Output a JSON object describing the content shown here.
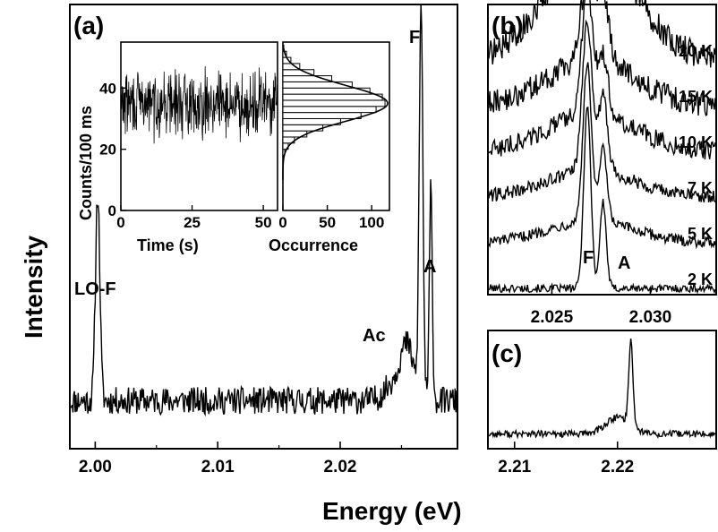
{
  "axes": {
    "xlabel": "Energy (eV)",
    "ylabel": "Intensity"
  },
  "chart_data": [
    {
      "id": "a",
      "type": "line",
      "panel_label": "(a)",
      "xlim": [
        1.998,
        2.0295
      ],
      "x_ticks": [
        "2.00",
        "2.01",
        "2.02"
      ],
      "x_tick_values": [
        2.0,
        2.01,
        2.02
      ],
      "ylim": [
        0,
        1
      ],
      "baseline": 0.12,
      "noise": 0.035,
      "peaks": [
        {
          "label": "LO-F",
          "x": 2.0002,
          "height": 0.53,
          "width": 0.00018
        },
        {
          "label": "Ac",
          "x": 2.0255,
          "height": 0.1,
          "width": 0.0005
        },
        {
          "label": "F",
          "x": 2.0266,
          "height": 1.0,
          "width": 0.00015
        },
        {
          "label": "A",
          "x": 2.0274,
          "height": 0.54,
          "width": 0.00012
        }
      ],
      "annotations": [
        "LO-F",
        "Ac",
        "F",
        "A"
      ]
    },
    {
      "id": "a-inset-trace",
      "type": "line",
      "xlabel": "Time (s)",
      "ylabel": "Counts/100 ms",
      "xlim": [
        0,
        55
      ],
      "ylim": [
        0,
        55
      ],
      "x_ticks": [
        "0",
        "25",
        "50"
      ],
      "x_tick_values": [
        0,
        25,
        50
      ],
      "y_ticks": [
        "0",
        "20",
        "40"
      ],
      "y_tick_values": [
        0,
        20,
        40
      ],
      "mean": 35,
      "spread": 6
    },
    {
      "id": "a-inset-histogram",
      "type": "bar",
      "xlabel": "Occurrence",
      "xlim": [
        0,
        120
      ],
      "x_ticks": [
        "0",
        "50",
        "100"
      ],
      "x_tick_values": [
        0,
        50,
        100
      ],
      "ylim": [
        0,
        55
      ],
      "bin_width": 2,
      "bins": [
        {
          "y": 18,
          "count": 2
        },
        {
          "y": 20,
          "count": 6
        },
        {
          "y": 22,
          "count": 13
        },
        {
          "y": 24,
          "count": 27
        },
        {
          "y": 26,
          "count": 45
        },
        {
          "y": 28,
          "count": 65
        },
        {
          "y": 30,
          "count": 88
        },
        {
          "y": 32,
          "count": 105
        },
        {
          "y": 34,
          "count": 115
        },
        {
          "y": 36,
          "count": 112
        },
        {
          "y": 38,
          "count": 98
        },
        {
          "y": 40,
          "count": 78
        },
        {
          "y": 42,
          "count": 55
        },
        {
          "y": 44,
          "count": 35
        },
        {
          "y": 46,
          "count": 19
        },
        {
          "y": 48,
          "count": 9
        },
        {
          "y": 50,
          "count": 4
        },
        {
          "y": 52,
          "count": 1
        }
      ],
      "fit": {
        "type": "gaussian",
        "center": 35,
        "sigma": 5.8,
        "amplitude": 118
      }
    },
    {
      "id": "b",
      "type": "line",
      "panel_label": "(b)",
      "xlim": [
        2.0218,
        2.0333
      ],
      "x_ticks": [
        "2.025",
        "2.030"
      ],
      "x_tick_values": [
        2.025,
        2.03
      ],
      "peak_labels": [
        "F",
        "A"
      ],
      "series": [
        {
          "name": "2 K",
          "offset": 0.0,
          "F": 0.68,
          "A": 0.32,
          "broad": 0.0,
          "noise": 0.015,
          "F_x": 2.0268,
          "A_x": 2.0276,
          "width": 0.00018
        },
        {
          "name": "5 K",
          "offset": 0.17,
          "F": 0.58,
          "A": 0.27,
          "broad": 0.08,
          "noise": 0.02,
          "F_x": 2.0268,
          "A_x": 2.0276,
          "width": 0.00022
        },
        {
          "name": "7 K",
          "offset": 0.34,
          "F": 0.55,
          "A": 0.28,
          "broad": 0.1,
          "noise": 0.025,
          "F_x": 2.0268,
          "A_x": 2.0276,
          "width": 0.00025
        },
        {
          "name": "10 K",
          "offset": 0.51,
          "F": 0.45,
          "A": 0.22,
          "broad": 0.14,
          "noise": 0.035,
          "F_x": 2.0268,
          "A_x": 2.0276,
          "width": 0.00028
        },
        {
          "name": "15 K",
          "offset": 0.68,
          "F": 0.32,
          "A": 0.26,
          "broad": 0.17,
          "noise": 0.045,
          "F_x": 2.0268,
          "A_x": 2.0276,
          "width": 0.00032
        },
        {
          "name": "20 K",
          "offset": 0.85,
          "F": 0.0,
          "A": 0.0,
          "broad": 0.42,
          "noise": 0.05,
          "F_x": 2.0268,
          "A_x": 2.0276,
          "width": 0.0004
        }
      ]
    },
    {
      "id": "c",
      "type": "line",
      "panel_label": "(c)",
      "xlim": [
        2.2075,
        2.2295
      ],
      "x_ticks": [
        "2.21",
        "2.22"
      ],
      "x_tick_values": [
        2.21,
        2.22
      ],
      "baseline": 0.14,
      "noise": 0.035,
      "peak": {
        "x": 2.2213,
        "height": 0.85,
        "width": 0.0002
      },
      "shoulder": {
        "x": 2.2201,
        "height": 0.17,
        "width": 0.0012
      }
    }
  ]
}
